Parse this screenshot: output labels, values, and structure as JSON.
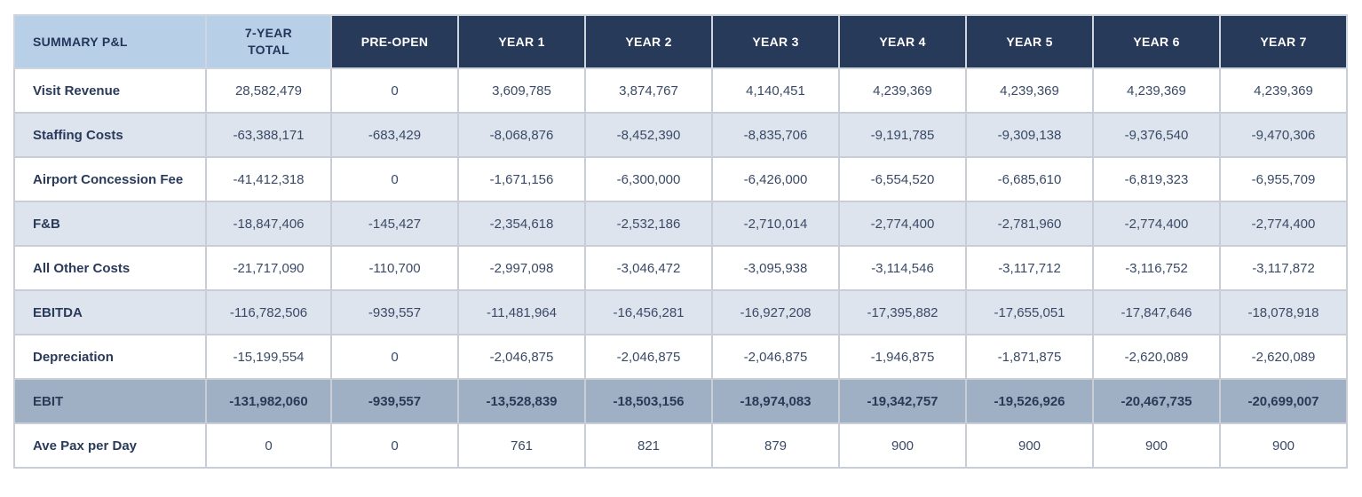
{
  "table": {
    "header": {
      "label": "SUMMARY P&L",
      "total_line1": "7-YEAR",
      "total_line2": "TOTAL",
      "columns": [
        "PRE-OPEN",
        "YEAR 1",
        "YEAR 2",
        "YEAR 3",
        "YEAR 4",
        "YEAR 5",
        "YEAR 6",
        "YEAR 7"
      ]
    },
    "rows": [
      {
        "label": "Visit Revenue",
        "total": "28,582,479",
        "values": [
          "0",
          "3,609,785",
          "3,874,767",
          "4,140,451",
          "4,239,369",
          "4,239,369",
          "4,239,369",
          "4,239,369"
        ]
      },
      {
        "label": "Staffing Costs",
        "total": "-63,388,171",
        "values": [
          "-683,429",
          "-8,068,876",
          "-8,452,390",
          "-8,835,706",
          "-9,191,785",
          "-9,309,138",
          "-9,376,540",
          "-9,470,306"
        ]
      },
      {
        "label": "Airport Concession Fee",
        "total": "-41,412,318",
        "values": [
          "0",
          "-1,671,156",
          "-6,300,000",
          "-6,426,000",
          "-6,554,520",
          "-6,685,610",
          "-6,819,323",
          "-6,955,709"
        ]
      },
      {
        "label": "F&B",
        "total": "-18,847,406",
        "values": [
          "-145,427",
          "-2,354,618",
          "-2,532,186",
          "-2,710,014",
          "-2,774,400",
          "-2,781,960",
          "-2,774,400",
          "-2,774,400"
        ]
      },
      {
        "label": "All Other Costs",
        "total": "-21,717,090",
        "values": [
          "-110,700",
          "-2,997,098",
          "-3,046,472",
          "-3,095,938",
          "-3,114,546",
          "-3,117,712",
          "-3,116,752",
          "-3,117,872"
        ]
      },
      {
        "label": "EBITDA",
        "total": "-116,782,506",
        "values": [
          "-939,557",
          "-11,481,964",
          "-16,456,281",
          "-16,927,208",
          "-17,395,882",
          "-17,655,051",
          "-17,847,646",
          "-18,078,918"
        ]
      },
      {
        "label": "Depreciation",
        "total": "-15,199,554",
        "values": [
          "0",
          "-2,046,875",
          "-2,046,875",
          "-2,046,875",
          "-1,946,875",
          "-1,871,875",
          "-2,620,089",
          "-2,620,089"
        ]
      },
      {
        "label": "EBIT",
        "total": "-131,982,060",
        "values": [
          "-939,557",
          "-13,528,839",
          "-18,503,156",
          "-18,974,083",
          "-19,342,757",
          "-19,526,926",
          "-20,467,735",
          "-20,699,007"
        ]
      },
      {
        "label": "Ave Pax per Day",
        "total": "0",
        "values": [
          "0",
          "761",
          "821",
          "879",
          "900",
          "900",
          "900",
          "900"
        ]
      }
    ]
  }
}
